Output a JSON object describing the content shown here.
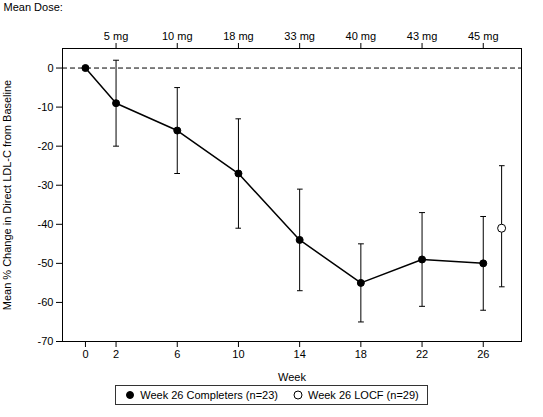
{
  "chart_data": {
    "type": "line",
    "xlabel": "Week",
    "ylabel": "Mean % Change in Direct LDL-C from Baseline",
    "x2label": "Mean Dose:",
    "xlim": [
      -1.5,
      28.5
    ],
    "xticks": [
      0,
      2,
      6,
      10,
      14,
      18,
      22,
      26
    ],
    "x2ticks": [
      {
        "value": 2,
        "label": "5 mg"
      },
      {
        "value": 6,
        "label": "10 mg"
      },
      {
        "value": 10,
        "label": "18 mg"
      },
      {
        "value": 14,
        "label": "33 mg"
      },
      {
        "value": 18,
        "label": "40 mg"
      },
      {
        "value": 22,
        "label": "43 mg"
      },
      {
        "value": 26,
        "label": "45 mg"
      }
    ],
    "ylim": [
      -70,
      5
    ],
    "yticks": [
      0,
      -10,
      -20,
      -30,
      -40,
      -50,
      -60,
      -70
    ],
    "grid": false,
    "legend": "bottom",
    "reference_line": {
      "y": 0,
      "line_style": "dashed",
      "color": "black"
    },
    "series": [
      {
        "name": "Week 26 Completers (n=23)",
        "type": "line",
        "color": "black",
        "marker": "filled_circle",
        "line_style": "solid",
        "x": [
          0,
          2,
          6,
          10,
          14,
          18,
          22,
          26
        ],
        "values": [
          0,
          -9,
          -16,
          -27,
          -44,
          -55,
          -49,
          -50
        ],
        "yerr_low": [
          0,
          11,
          11,
          14,
          13,
          10,
          12,
          12
        ],
        "yerr_high": [
          0,
          11,
          11,
          14,
          13,
          10,
          12,
          12
        ]
      },
      {
        "name": "Week 26 LOCF (n=29)",
        "type": "scatter",
        "color": "black",
        "marker": "open_circle",
        "line_style": "none",
        "x": [
          27.2
        ],
        "values": [
          -41
        ],
        "yerr_low": [
          15
        ],
        "yerr_high": [
          16
        ]
      }
    ]
  }
}
